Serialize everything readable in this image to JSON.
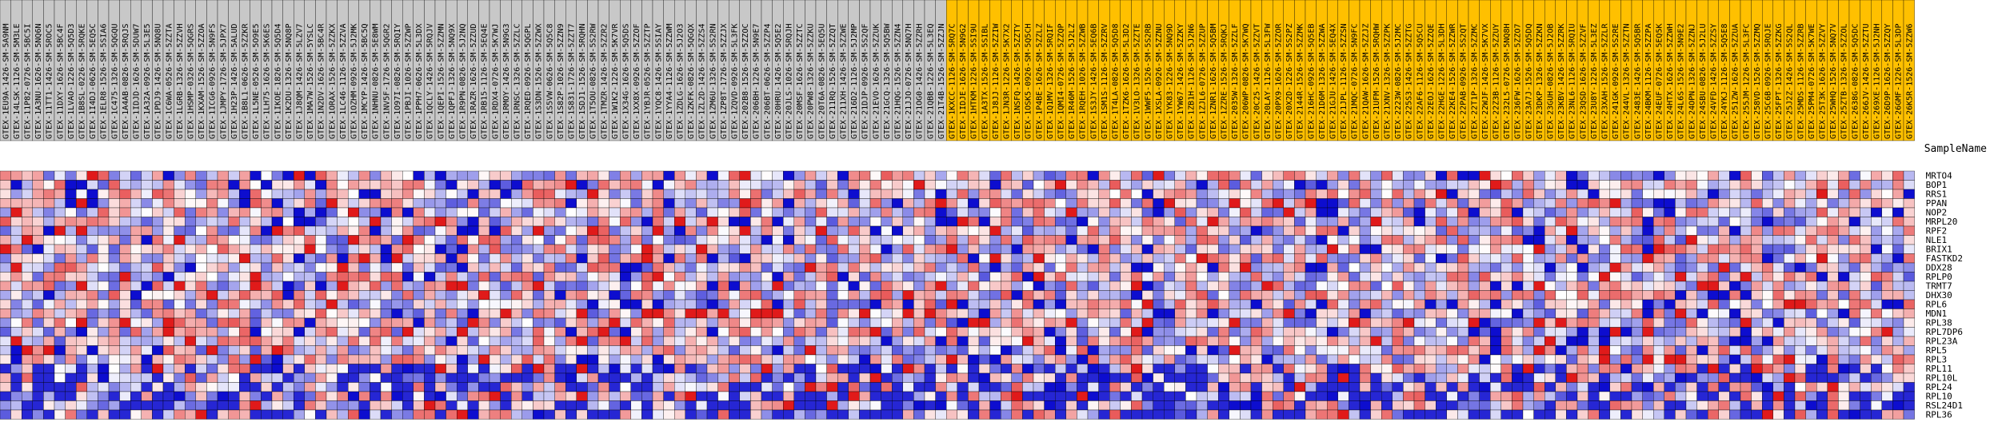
{
  "chart_data": {
    "type": "heatmap",
    "xlabel": "",
    "ylabel": "SampleName",
    "colors": {
      "group_1_header": "#C8C8C8",
      "group_2_header": "#FFC000",
      "low": "#0000CC",
      "mid": "#FFFFFF",
      "high": "#DD0000"
    },
    "color_scale_range": [
      -1,
      1
    ],
    "column_groups": [
      {
        "count": 87
      },
      {
        "count": 89
      }
    ],
    "rows": [
      "MRTO4",
      "BOP1",
      "RRS1",
      "PPAN",
      "NOP2",
      "MRPL20",
      "RPF2",
      "NLE1",
      "BRIX1",
      "FASTKD2",
      "DDX28",
      "RPLP0",
      "TRMT7",
      "DHX30",
      "RPL6",
      "MDN1",
      "RPL38",
      "RPL7DP6",
      "RPL23A",
      "RPL5",
      "RPL3",
      "RPL11",
      "RPL10L",
      "RPL24",
      "RPL10",
      "RSL24D1",
      "RPL36"
    ],
    "columns_group_1": [
      "GTEX-1EU9A-1426-SM-5A9NM",
      "GTEX-14LSK-1126-SM-5M3LE",
      "GTEX-11P82-0726-SM-5BC5I",
      "GTEX-1A3NU-1626-SM-5NQ6N",
      "GTEX-11TT1-1426-SM-5ROC5",
      "GTEX-11DXY-1626-SM-5BC4F",
      "GTEX-1LVAO-1226-SM-5Q5D3",
      "GTEX-1B8SL-0226-SM-5RQKE",
      "GTEX-1I4DJ-0626-SM-5EQ5C",
      "GTEX-1ELR8-1526-SM-5SIA6",
      "GTEX-1C475-1326-SM-5QGQU",
      "GTEX-1A4AB-0826-SM-5RQJS",
      "GTEX-1IDJD-1626-SM-5DUW7",
      "GTEX-1A32A-0926-SM-5L3E5",
      "GTEX-1PDJ9-1426-SM-5NQ8U",
      "GTEX-1C6WA-0526-SM-5ZZTA",
      "GTEX-1LGRB-1326-SM-5ZZVH",
      "GTEX-1HSMP-0326-SM-5QGRS",
      "GTEX-1KXAM-1526-SM-5ZZOA",
      "GTEX-1ICG6-0926-SM-5N9FS",
      "GTEX-1JMPY-1726-SM-5JPX7",
      "GTEX-1H23P-1426-SM-5ALUD",
      "GTEX-1B8L1-0626-SM-5ZZKR",
      "GTEX-1L5NE-0526-SM-5O9E5",
      "GTEX-1LH75-1626-SM-5K6ES",
      "GTEX-1IKOE-1826-SM-5Q5D4",
      "GTEX-1K2DU-1326-SM-5NQ8P",
      "GTEX-1J8QM-1426-SM-5LZV7",
      "GTEX-1MA7W-1526-SM-5YSLC",
      "GTEX-1N2DV-1626-SM-5BC4R",
      "GTEX-1ORAX-1526-SM-5ZZKX",
      "GTEX-1LC46-1126-SM-5ZZVA",
      "GTEX-1OZHM-0926-SM-5J2MK",
      "GTEX-1MCYP-1426-SM-5BC5Q",
      "GTEX-1NHNU-0826-SM-5E8WM",
      "GTEX-1NV5F-1726-SM-5QGR2",
      "GTEX-1O97I-0826-SM-5RQIY",
      "GTEX-1PBJI-1026-SM-5ZZWP",
      "GTEX-1PPH7-0626-SM-5L3DX",
      "GTEX-1QCLY-1426-SM-5RQJV",
      "GTEX-1QEPI-1526-SM-5ZZMN",
      "GTEX-1QPFJ-1326-SM-5NQ9X",
      "GTEX-1R9PN-0826-SM-5J2NQ",
      "GTEX-1RAZR-1626-SM-5ZZUD",
      "GTEX-1RB15-1126-SM-5EQ4E",
      "GTEX-1RDX4-0726-SM-5K7WJ",
      "GTEX-1RMOY-1426-SM-5N9G3",
      "GTEX-1RNSC-1326-SM-5ZZLC",
      "GTEX-1RQED-0926-SM-5QGPL",
      "GTEX-1S3DN-1526-SM-5ZZWX",
      "GTEX-1S5VW-0626-SM-5Q5C8",
      "GTEX-1S82P-1026-SM-5ZZN9",
      "GTEX-1S831-1726-SM-5ZZT7",
      "GTEX-1SDJ1-1526-SM-5RQHN",
      "GTEX-1T5OU-0826-SM-5S2RW",
      "GTEX-1TMZR-1426-SM-5ZZR2",
      "GTEX-1W1K2-1226-SM-5K7VR",
      "GTEX-1X34G-1626-SM-5Q5DS",
      "GTEX-1XX8X-0926-SM-5ZZOF",
      "GTEX-1YBJR-0526-SM-5ZZTP",
      "GTEX-1YQC8-1426-SM-5SIAY",
      "GTEX-1YYA4-1126-SM-5ZZWM",
      "GTEX-1ZDLG-1626-SM-5J2O3",
      "GTEX-1ZKFK-0826-SM-5QGQX",
      "GTEX-1ZL2D-1426-SM-5ZZS4",
      "GTEX-1ZM6U-1326-SM-5S2RN",
      "GTEX-1ZP8T-1726-SM-5ZZJX",
      "GTEX-1ZQVD-0926-SM-5L3FK",
      "GTEX-202B8-1526-SM-5ZZOC",
      "GTEX-206BH-1226-SM-5N9E7",
      "GTEX-206BT-0626-SM-5ZZP4",
      "GTEX-20HRU-1426-SM-5Q5E2",
      "GTEX-20JLS-1026-SM-5RQJH",
      "GTEX-20MSF-1626-SM-5ZZTC",
      "GTEX-20PW8-1326-SM-5ZZKU",
      "GTEX-20T6A-0826-SM-5EQ5U",
      "GTEX-211RQ-1526-SM-5ZZQT",
      "GTEX-211XH-1426-SM-5ZZWE",
      "GTEX-216D2-1126-SM-5J2MP",
      "GTEX-21DJP-0926-SM-5S2QF",
      "GTEX-21EVO-1626-SM-5ZZUK",
      "GTEX-21GCQ-1326-SM-5Q5BW",
      "GTEX-21HQG-1526-SM-5ZZN4",
      "GTEX-21JJO-0726-SM-5NQ7H",
      "GTEX-21OG0-1426-SM-5ZZRH",
      "GTEX-21QBB-1226-SM-5L3EQ",
      "GTEX-21T4B-1526-SM-5ZZJN"
    ],
    "columns_group_2": [
      "GTEX-1KXCC-1126-SM-5RQ7C",
      "GTEX-1IDJE-1626-SM-5N9G2",
      "GTEX-1HTKM-1226-SM-5SI9U",
      "GTEX-1A3TX-1526-SM-5SIBL",
      "GTEX-1J8JJ-1126-SM-5ZZIW",
      "GTEX-1JN3R-1226-SM-5K7X2",
      "GTEX-1NSFQ-1426-SM-5ZZTY",
      "GTEX-1OSK5-0926-SM-5Q5CH",
      "GTEX-1P4BE-1626-SM-5ZZLZ",
      "GTEX-1Q1MV-1326-SM-5RQIF",
      "GTEX-1QMI4-0726-SM-5ZZQP",
      "GTEX-1R46M-1526-SM-5J2LZ",
      "GTEX-1RQEH-1026-SM-5ZZWB",
      "GTEX-1S3JY-1426-SM-5EQ6B",
      "GTEX-1SM1S-1126-SM-5ZZRV",
      "GTEX-1T4LA-0826-SM-5Q5D8",
      "GTEX-1TZK6-1626-SM-5L3D2",
      "GTEX-1V3LO-1326-SM-5ZZTE",
      "GTEX-1WWF5-1526-SM-5S2RB",
      "GTEX-1XSLA-0926-SM-5ZZNU",
      "GTEX-1YK83-1226-SM-5NQ9D",
      "GTEX-1YW67-1426-SM-5ZZKY",
      "GTEX-1ZB1H-1126-SM-5J2N6",
      "GTEX-1ZJL6-0726-SM-5ZZUP",
      "GTEX-1ZNR1-1626-SM-5Q5BM",
      "GTEX-1ZZRE-1526-SM-5RQKJ",
      "GTEX-2035W-1326-SM-5ZZLF",
      "GTEX-206WP-0826-SM-5K7WQ",
      "GTEX-20C25-1426-SM-5ZZVT",
      "GTEX-20LAY-1126-SM-5L3FW",
      "GTEX-20PX9-1626-SM-5ZZOR",
      "GTEX-20X2D-1226-SM-5S2PZ",
      "GTEX-2144R-1526-SM-5ZZMK",
      "GTEX-216HC-0926-SM-5Q5EB",
      "GTEX-21D6M-1326-SM-5ZZWA",
      "GTEX-21GJU-1426-SM-5EQ4X",
      "GTEX-21JPL-1126-SM-5ZZSN",
      "GTEX-21MQC-0726-SM-5N9FC",
      "GTEX-21QAW-1626-SM-5ZZJZ",
      "GTEX-21UFM-1526-SM-5RQHW",
      "GTEX-21XNV-1326-SM-5ZZPK",
      "GTEX-2223W-0826-SM-5J2MC",
      "GTEX-225S3-1426-SM-5ZZTG",
      "GTEX-22AF6-1126-SM-5Q5CU",
      "GTEX-22EOJ-1626-SM-5ZZQE",
      "GTEX-22HGE-1226-SM-5L3DH",
      "GTEX-22KE4-1526-SM-5ZZWR",
      "GTEX-22PAB-0926-SM-5S2QT",
      "GTEX-22T1P-1326-SM-5ZZMC",
      "GTEX-22WJF-1426-SM-5K7VX",
      "GTEX-22Z3B-1126-SM-5ZZUY",
      "GTEX-232L5-0726-SM-5NQ8H",
      "GTEX-236FW-1626-SM-5ZZO7",
      "GTEX-23A7J-1526-SM-5Q5DQ",
      "GTEX-23DKP-1326-SM-5ZZKN",
      "GTEX-23GUH-0826-SM-5J2OB",
      "GTEX-23KBV-1426-SM-5ZZRK",
      "GTEX-23NL6-1126-SM-5RQIU",
      "GTEX-23QSD-1626-SM-5ZZVF",
      "GTEX-23U8Y-1226-SM-5L3EZ",
      "GTEX-23XAH-1526-SM-5ZZLR",
      "GTEX-241GK-0926-SM-5S2RE",
      "GTEX-244VL-1326-SM-5ZZTN",
      "GTEX-2483E-1426-SM-5Q5BR",
      "GTEX-24BKM-1126-SM-5ZZPA",
      "GTEX-24EUF-0726-SM-5EQ5K",
      "GTEX-24HTX-1626-SM-5ZZWH",
      "GTEX-24L6S-1526-SM-5N9E2",
      "GTEX-24OPN-1326-SM-5ZZNJ",
      "GTEX-24SBU-0826-SM-5J2LU",
      "GTEX-24VFD-1426-SM-5ZZSY",
      "GTEX-24YKJ-1126-SM-5Q5E8",
      "GTEX-251ZW-1626-SM-5ZZUA",
      "GTEX-255JM-1226-SM-5L3FC",
      "GTEX-258VD-1526-SM-5ZZMQ",
      "GTEX-25C6B-0926-SM-5RQJE",
      "GTEX-25FPT-1326-SM-5ZZKG",
      "GTEX-25J2Z-1426-SM-5S2QL",
      "GTEX-25MDS-1126-SM-5ZZRB",
      "GTEX-25PM4-0726-SM-5K7WE",
      "GTEX-25T3K-1626-SM-5ZZVY",
      "GTEX-25WHQ-1526-SM-5NQ7V",
      "GTEX-25ZTB-1326-SM-5ZZOL",
      "GTEX-2638G-0826-SM-5Q5DC",
      "GTEX-266JV-1426-SM-5ZZTU",
      "GTEX-269XE-1126-SM-5J2NH",
      "GTEX-26D9P-1626-SM-5ZZQY",
      "GTEX-26GMF-1226-SM-5L3DP",
      "GTEX-26K5R-1526-SM-5ZZW6"
    ],
    "values_note": "",
    "seed": 20240611
  }
}
